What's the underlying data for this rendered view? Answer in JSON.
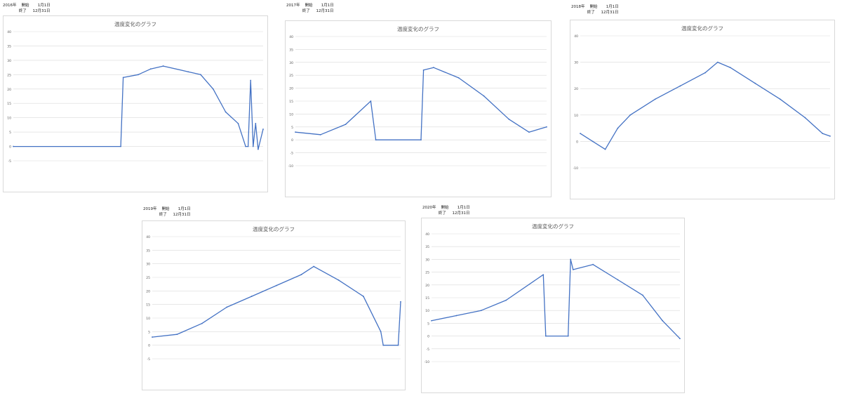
{
  "panels": [
    {
      "year": "2016年",
      "start_label": "開始",
      "start": "1月1日",
      "end_label": "終了",
      "end": "12月31日"
    },
    {
      "year": "2017年",
      "start_label": "開始",
      "start": "1月1日",
      "end_label": "終了",
      "end": "12月31日"
    },
    {
      "year": "2018年",
      "start_label": "開始",
      "start": "1月1日",
      "end_label": "終了",
      "end": "12月31日"
    },
    {
      "year": "2019年",
      "start_label": "開始",
      "start": "1月1日",
      "end_label": "終了",
      "end": "12月31日"
    },
    {
      "year": "2020年",
      "start_label": "開始",
      "start": "1月1日",
      "end_label": "終了",
      "end": "12月31日"
    }
  ],
  "chart_data": [
    {
      "type": "line",
      "title": "温度変化のグラフ",
      "ylim": [
        -5,
        40
      ],
      "yticks": [
        -5,
        0,
        5,
        10,
        15,
        20,
        25,
        30,
        35,
        40
      ],
      "grid": true,
      "color": "#4472C4",
      "series": [
        {
          "x": [
            0.0,
            0.43,
            0.44,
            0.5,
            0.55,
            0.6,
            0.7,
            0.75,
            0.8,
            0.85,
            0.9,
            0.93,
            0.94,
            0.95,
            0.96,
            0.97,
            0.98,
            1.0
          ],
          "values": [
            0,
            0,
            24,
            25,
            27,
            28,
            26,
            25,
            20,
            12,
            8,
            0,
            0,
            23,
            0,
            8,
            -1,
            6
          ]
        }
      ]
    },
    {
      "type": "line",
      "title": "温度変化のグラフ",
      "ylim": [
        -10,
        40
      ],
      "yticks": [
        -10,
        -5,
        0,
        5,
        10,
        15,
        20,
        25,
        30,
        35,
        40
      ],
      "grid": true,
      "color": "#4472C4",
      "series": [
        {
          "x": [
            0.0,
            0.1,
            0.2,
            0.3,
            0.32,
            0.5,
            0.51,
            0.55,
            0.65,
            0.75,
            0.85,
            0.93,
            1.0
          ],
          "values": [
            3,
            2,
            6,
            15,
            0,
            0,
            27,
            28,
            24,
            17,
            8,
            3,
            5
          ]
        }
      ]
    },
    {
      "type": "line",
      "title": "温度変化のグラフ",
      "ylim": [
        -10,
        40
      ],
      "yticks": [
        -10,
        0,
        10,
        20,
        30,
        40
      ],
      "grid": true,
      "color": "#4472C4",
      "series": [
        {
          "x": [
            0.0,
            0.05,
            0.1,
            0.15,
            0.2,
            0.3,
            0.4,
            0.5,
            0.55,
            0.6,
            0.7,
            0.8,
            0.9,
            0.97,
            1.0
          ],
          "values": [
            3,
            0,
            -3,
            5,
            10,
            16,
            21,
            26,
            30,
            28,
            22,
            16,
            9,
            3,
            2
          ]
        }
      ]
    },
    {
      "type": "line",
      "title": "温度変化のグラフ",
      "ylim": [
        -5,
        40
      ],
      "yticks": [
        -5,
        0,
        5,
        10,
        15,
        20,
        25,
        30,
        35,
        40
      ],
      "grid": true,
      "color": "#4472C4",
      "series": [
        {
          "x": [
            0.0,
            0.1,
            0.2,
            0.3,
            0.4,
            0.5,
            0.6,
            0.65,
            0.75,
            0.85,
            0.92,
            0.93,
            0.99,
            1.0
          ],
          "values": [
            3,
            4,
            8,
            14,
            18,
            22,
            26,
            29,
            24,
            18,
            5,
            0,
            0,
            16
          ]
        }
      ]
    },
    {
      "type": "line",
      "title": "温度変化のグラフ",
      "ylim": [
        -10,
        40
      ],
      "yticks": [
        -10,
        -5,
        0,
        5,
        10,
        15,
        20,
        25,
        30,
        35,
        40
      ],
      "grid": true,
      "color": "#4472C4",
      "series": [
        {
          "x": [
            0.0,
            0.1,
            0.2,
            0.3,
            0.45,
            0.46,
            0.55,
            0.56,
            0.57,
            0.65,
            0.75,
            0.85,
            0.93,
            1.0
          ],
          "values": [
            6,
            8,
            10,
            14,
            24,
            0,
            0,
            30,
            26,
            28,
            22,
            16,
            6,
            -1
          ]
        }
      ]
    }
  ]
}
